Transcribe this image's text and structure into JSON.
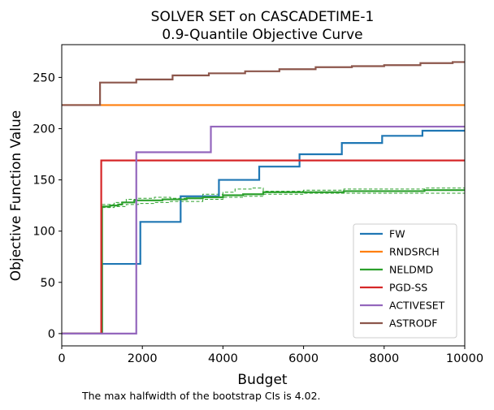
{
  "chart_data": {
    "type": "line",
    "title": "SOLVER SET on CASCADETIME-1",
    "subtitle": "0.9-Quantile Objective Curve",
    "xlabel": "Budget",
    "ylabel": "Objective Function Value",
    "xlim": [
      0,
      10000
    ],
    "ylim": [
      -12,
      282
    ],
    "xticks": [
      0,
      2000,
      4000,
      6000,
      8000,
      10000
    ],
    "yticks": [
      0,
      50,
      100,
      150,
      200,
      250
    ],
    "grid": false,
    "legend_position": "lower-right",
    "note": "The max halfwidth of the bootstrap CIs is 4.02.",
    "series": [
      {
        "name": "FW",
        "color": "#1f77b4",
        "step": true,
        "x": [
          0,
          1000,
          1000,
          1950,
          1950,
          2950,
          2950,
          3900,
          3900,
          4900,
          4900,
          5900,
          5900,
          6950,
          6950,
          7950,
          7950,
          8950,
          8950,
          10000
        ],
        "y": [
          0,
          0,
          68,
          68,
          109,
          109,
          134,
          134,
          150,
          150,
          163,
          163,
          175,
          175,
          186,
          186,
          193,
          193,
          198,
          198
        ]
      },
      {
        "name": "RNDSRCH",
        "color": "#ff7f0e",
        "step": true,
        "x": [
          0,
          10000
        ],
        "y": [
          223,
          223
        ]
      },
      {
        "name": "NELDMD",
        "color": "#2ca02c",
        "step": true,
        "x": [
          0,
          1000,
          1000,
          1200,
          1400,
          1500,
          1700,
          1800,
          2000,
          2200,
          2500,
          2800,
          3100,
          3500,
          4000,
          4500,
          5000,
          6000,
          7000,
          8000,
          9000,
          10000
        ],
        "y": [
          0,
          0,
          124,
          125,
          126,
          128,
          128,
          130,
          130,
          130,
          131,
          131,
          132,
          133,
          135,
          136,
          138,
          138,
          139,
          139,
          140,
          140
        ]
      },
      {
        "name": "PGD-SS",
        "color": "#d62728",
        "step": true,
        "x": [
          0,
          980,
          980,
          10000
        ],
        "y": [
          0,
          0,
          169,
          169
        ]
      },
      {
        "name": "ACTIVESET",
        "color": "#9467bd",
        "step": true,
        "x": [
          0,
          1850,
          1850,
          3700,
          3700,
          10000
        ],
        "y": [
          0,
          0,
          177,
          177,
          202,
          202
        ]
      },
      {
        "name": "ASTRODF",
        "color": "#8c564b",
        "step": true,
        "x": [
          0,
          950,
          950,
          1850,
          1850,
          2750,
          2750,
          3650,
          3650,
          4550,
          4550,
          5400,
          5400,
          6300,
          6300,
          7200,
          7200,
          8000,
          8000,
          8900,
          8900,
          9700,
          9700,
          10000
        ],
        "y": [
          223,
          223,
          245,
          245,
          248,
          248,
          252,
          252,
          254,
          254,
          256,
          256,
          258,
          258,
          260,
          260,
          261,
          261,
          262,
          262,
          264,
          264,
          265,
          265
        ]
      }
    ],
    "confidence_bands": [
      {
        "series": "NELDMD",
        "lower": {
          "x": [
            1000,
            1300,
            1600,
            1900,
            2300,
            2700,
            3100,
            3500,
            4000,
            4500,
            5000,
            6000,
            7000,
            8000,
            9000,
            10000
          ],
          "y": [
            123,
            124,
            126,
            127,
            128,
            129,
            129,
            131,
            133,
            134,
            136,
            137,
            137,
            137,
            137,
            137
          ]
        },
        "upper": {
          "x": [
            1000,
            1300,
            1600,
            1900,
            2300,
            2700,
            3100,
            3500,
            4000,
            4300,
            4700,
            5000,
            6000,
            7000,
            8000,
            9000,
            10000
          ],
          "y": [
            126,
            128,
            131,
            132,
            133,
            132,
            134,
            136,
            138,
            141,
            142,
            139,
            140,
            141,
            141,
            142,
            142
          ]
        }
      }
    ]
  }
}
